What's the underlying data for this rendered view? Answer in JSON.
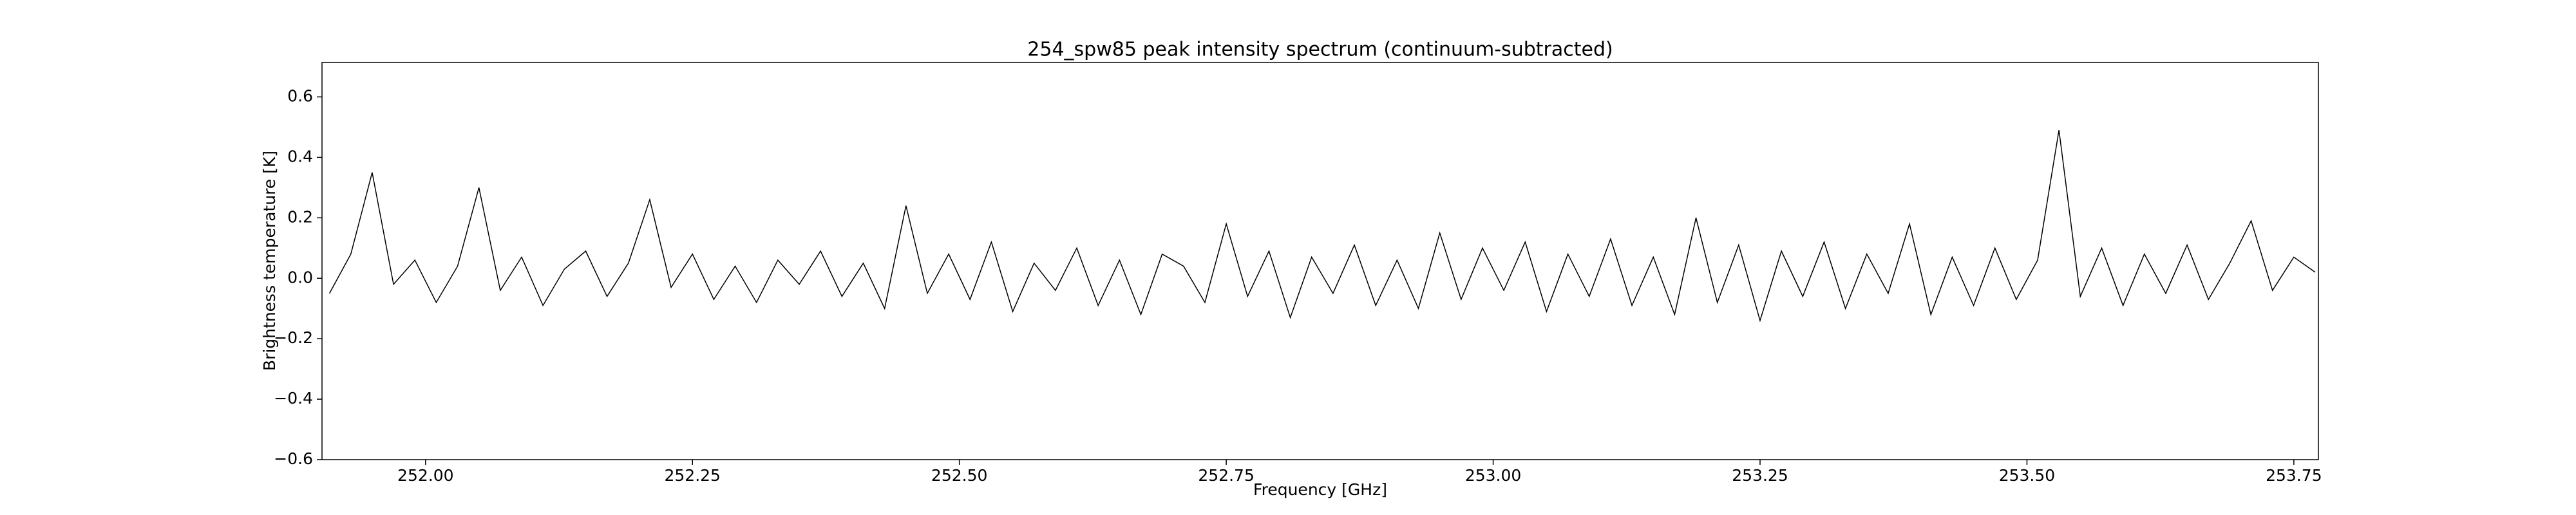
{
  "chart_data": {
    "type": "line",
    "title": "254_spw85 peak intensity spectrum (continuum-subtracted)",
    "x_label": "Frequency [GHz]",
    "y_label": "Brightness temperature [K]",
    "x": [
      251.91,
      251.93,
      251.95,
      251.97,
      251.99,
      252.01,
      252.03,
      252.05,
      252.07,
      252.09,
      252.11,
      252.13,
      252.15,
      252.17,
      252.19,
      252.21,
      252.23,
      252.25,
      252.27,
      252.29,
      252.31,
      252.33,
      252.35,
      252.37,
      252.39,
      252.41,
      252.43,
      252.45,
      252.47,
      252.49,
      252.51,
      252.53,
      252.55,
      252.57,
      252.59,
      252.61,
      252.63,
      252.65,
      252.67,
      252.69,
      252.71,
      252.73,
      252.75,
      252.77,
      252.79,
      252.81,
      252.83,
      252.85,
      252.87,
      252.89,
      252.91,
      252.93,
      252.95,
      252.97,
      252.99,
      253.01,
      253.03,
      253.05,
      253.07,
      253.09,
      253.11,
      253.13,
      253.15,
      253.17,
      253.19,
      253.21,
      253.23,
      253.25,
      253.27,
      253.29,
      253.31,
      253.33,
      253.35,
      253.37,
      253.39,
      253.41,
      253.43,
      253.45,
      253.47,
      253.49,
      253.51,
      253.53,
      253.55,
      253.57,
      253.59,
      253.61,
      253.63,
      253.65,
      253.67,
      253.69,
      253.71,
      253.73,
      253.75,
      253.77
    ],
    "series": [
      {
        "color": "#000000",
        "values": [
          -0.05,
          0.08,
          0.35,
          -0.02,
          0.06,
          -0.08,
          0.04,
          0.3,
          -0.04,
          0.07,
          -0.09,
          0.03,
          0.09,
          -0.06,
          0.05,
          0.26,
          -0.03,
          0.08,
          -0.07,
          0.04,
          -0.08,
          0.06,
          -0.02,
          0.09,
          -0.06,
          0.05,
          -0.1,
          0.24,
          -0.05,
          0.08,
          -0.07,
          0.12,
          -0.11,
          0.05,
          -0.04,
          0.1,
          -0.09,
          0.06,
          -0.12,
          0.08,
          0.04,
          -0.08,
          0.18,
          -0.06,
          0.09,
          -0.13,
          0.07,
          -0.05,
          0.11,
          -0.09,
          0.06,
          -0.1,
          0.15,
          -0.07,
          0.1,
          -0.04,
          0.12,
          -0.11,
          0.08,
          -0.06,
          0.13,
          -0.09,
          0.07,
          -0.12,
          0.2,
          -0.08,
          0.11,
          -0.14,
          0.09,
          -0.06,
          0.12,
          -0.1,
          0.08,
          -0.05,
          0.18,
          -0.12,
          0.07,
          -0.09,
          0.1,
          -0.07,
          0.06,
          0.49,
          -0.06,
          0.1,
          -0.09,
          0.08,
          -0.05,
          0.11,
          -0.07,
          0.05,
          0.19,
          -0.04,
          0.07,
          0.02
        ]
      }
    ],
    "xlim": [
      251.903,
      253.773
    ],
    "xticks": [
      {
        "value": 252.0,
        "label": "252.00"
      },
      {
        "value": 252.25,
        "label": "252.25"
      },
      {
        "value": 252.5,
        "label": "252.50"
      },
      {
        "value": 252.75,
        "label": "252.75"
      },
      {
        "value": 253.0,
        "label": "253.00"
      },
      {
        "value": 253.25,
        "label": "253.25"
      },
      {
        "value": 253.5,
        "label": "253.50"
      },
      {
        "value": 253.75,
        "label": "253.75"
      }
    ],
    "ylim": [
      -0.6,
      0.714
    ],
    "yticks": [
      {
        "value": -0.6,
        "label": "−0.6"
      },
      {
        "value": -0.4,
        "label": "−0.4"
      },
      {
        "value": -0.2,
        "label": "−0.2"
      },
      {
        "value": 0.0,
        "label": "0.0"
      },
      0.2,
      0.4,
      0.6
    ],
    "grid": false
  }
}
